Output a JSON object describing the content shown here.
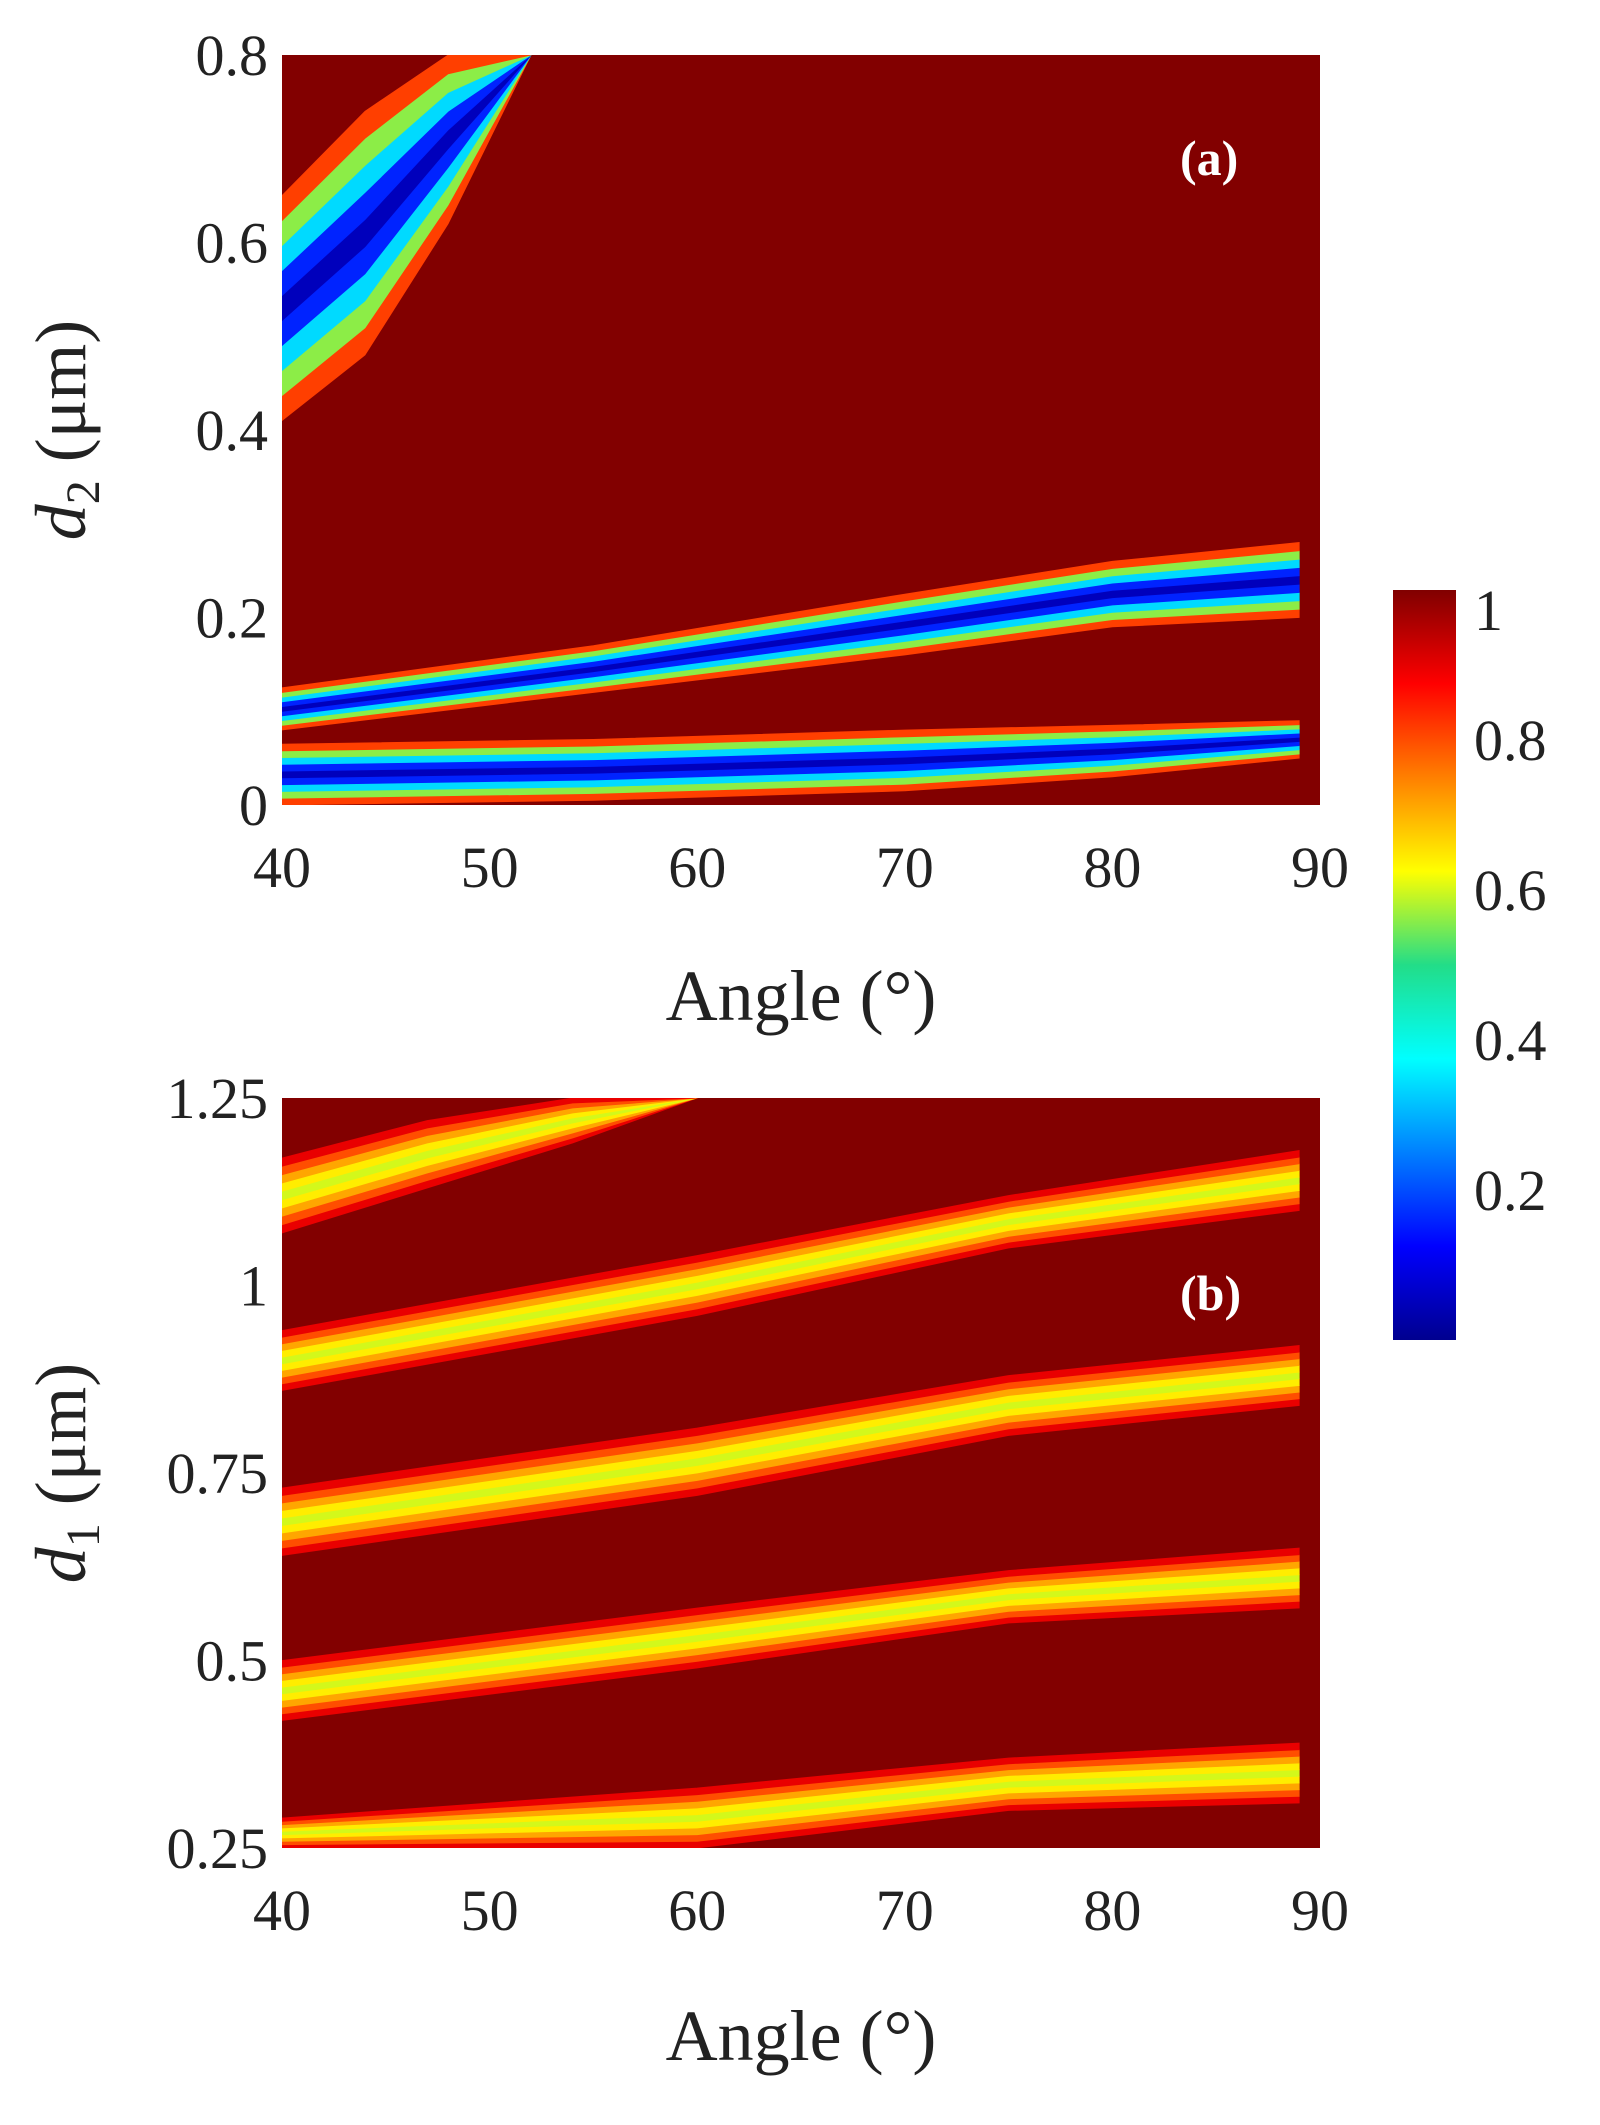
{
  "chart_data": [
    {
      "type": "heatmap",
      "panel_label": "(a)",
      "xlabel": "Angle (°)",
      "ylabel_var": "d",
      "ylabel_sub": "2",
      "ylabel_unit": " (μm)",
      "xlim": [
        40,
        90
      ],
      "ylim": [
        0,
        0.8
      ],
      "xticks": [
        40,
        50,
        60,
        70,
        80,
        90
      ],
      "yticks": [
        "0",
        "0.2",
        "0.4",
        "0.6",
        "0.8"
      ],
      "background_value": 1,
      "features": [
        {
          "name": "upper-left band",
          "x": [
            40,
            44,
            48,
            52
          ],
          "y_low": [
            0.41,
            0.48,
            0.62,
            0.8
          ],
          "y_high": [
            0.65,
            0.74,
            0.8,
            0.8
          ],
          "min_value": 0.05
        },
        {
          "name": "upper resonance",
          "x": [
            40,
            55,
            70,
            80,
            89
          ],
          "y_low": [
            0.08,
            0.12,
            0.16,
            0.19,
            0.2
          ],
          "y_high": [
            0.125,
            0.17,
            0.225,
            0.26,
            0.28
          ],
          "min_value": 0.05
        },
        {
          "name": "lower resonance",
          "x": [
            40,
            55,
            70,
            80,
            89
          ],
          "y_low": [
            0.0,
            0.005,
            0.015,
            0.03,
            0.05
          ],
          "y_high": [
            0.065,
            0.07,
            0.08,
            0.085,
            0.09
          ],
          "min_value": 0.05
        }
      ]
    },
    {
      "type": "heatmap",
      "panel_label": "(b)",
      "xlabel": "Angle (°)",
      "ylabel_var": "d",
      "ylabel_sub": "1",
      "ylabel_unit": " (μm)",
      "xlim": [
        40,
        90
      ],
      "ylim": [
        0.25,
        1.25
      ],
      "xticks": [
        40,
        50,
        60,
        70,
        80,
        90
      ],
      "yticks": [
        "0.25",
        "0.5",
        "0.75",
        "1",
        "1.25"
      ],
      "background_value": 1,
      "features": [
        {
          "name": "band 1",
          "x": [
            40,
            60,
            75,
            89
          ],
          "y_low": [
            0.25,
            0.25,
            0.3,
            0.31
          ],
          "y_high": [
            0.29,
            0.33,
            0.37,
            0.39
          ],
          "min_value": 0.6
        },
        {
          "name": "band 2",
          "x": [
            40,
            60,
            75,
            89
          ],
          "y_low": [
            0.42,
            0.49,
            0.55,
            0.57
          ],
          "y_high": [
            0.5,
            0.57,
            0.62,
            0.65
          ],
          "min_value": 0.6
        },
        {
          "name": "band 3",
          "x": [
            40,
            60,
            75,
            89
          ],
          "y_low": [
            0.64,
            0.72,
            0.8,
            0.84
          ],
          "y_high": [
            0.73,
            0.81,
            0.88,
            0.92
          ],
          "min_value": 0.6
        },
        {
          "name": "band 4",
          "x": [
            40,
            60,
            75,
            89
          ],
          "y_low": [
            0.86,
            0.96,
            1.05,
            1.1
          ],
          "y_high": [
            0.94,
            1.04,
            1.12,
            1.18
          ],
          "min_value": 0.6
        },
        {
          "name": "band 5",
          "x": [
            40,
            47,
            54,
            60
          ],
          "y_low": [
            1.07,
            1.13,
            1.19,
            1.25
          ],
          "y_high": [
            1.17,
            1.22,
            1.25,
            1.25
          ],
          "min_value": 0.6
        }
      ]
    }
  ],
  "colorbar": {
    "ticks": [
      "0.2",
      "0.4",
      "0.6",
      "0.8",
      "1"
    ],
    "tick_values": [
      0.2,
      0.4,
      0.6,
      0.8,
      1.0
    ],
    "range": [
      0,
      1
    ],
    "colormap": "jet"
  }
}
